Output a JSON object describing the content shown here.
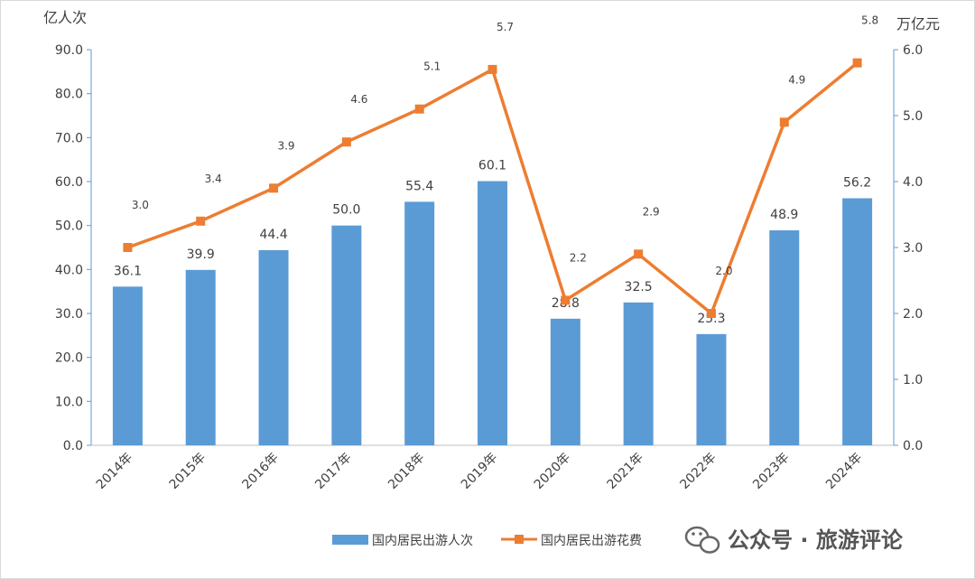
{
  "chart_data": {
    "type": "bar+line",
    "categories": [
      "2014年",
      "2015年",
      "2016年",
      "2017年",
      "2018年",
      "2019年",
      "2020年",
      "2021年",
      "2022年",
      "2023年",
      "2024年"
    ],
    "series": [
      {
        "name": "国内居民出游人次",
        "type": "bar",
        "axis": "left",
        "color": "#5b9bd5",
        "values": [
          36.1,
          39.9,
          44.4,
          50.0,
          55.4,
          60.1,
          28.8,
          32.5,
          25.3,
          48.9,
          56.2
        ]
      },
      {
        "name": "国内居民出游花费",
        "type": "line",
        "axis": "right",
        "color": "#ed7d31",
        "marker": "square",
        "values": [
          3.0,
          3.4,
          3.9,
          4.6,
          5.1,
          5.7,
          2.2,
          2.9,
          2.0,
          4.9,
          5.8
        ]
      }
    ],
    "left_axis": {
      "unit": "亿人次",
      "range": [
        0,
        90
      ],
      "step": 10,
      "decimals": 1
    },
    "right_axis": {
      "unit": "万亿元",
      "range": [
        0,
        6
      ],
      "step": 1,
      "decimals": 1
    },
    "legend_placement": "bottom",
    "grid": false
  },
  "watermark": {
    "text": "公众号 · 旅游评论",
    "icon": "wechat-icon"
  }
}
